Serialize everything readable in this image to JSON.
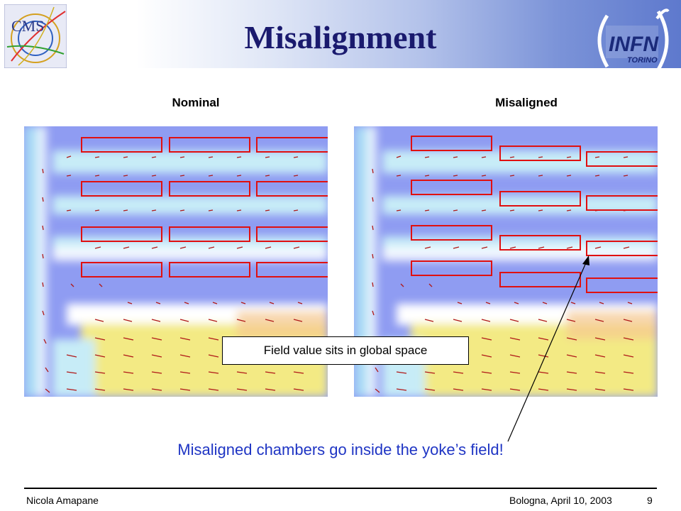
{
  "slide": {
    "title": "Misalignment",
    "panels": {
      "nominal_label": "Nominal",
      "misaligned_label": "Misaligned"
    },
    "callout": "Field value sits in global space",
    "conclusion": "Misaligned chambers go inside the yoke’s field!",
    "footer": {
      "author": "Nicola Amapane",
      "location_date": "Bologna, April 10, 2003",
      "page": "9"
    },
    "logos": {
      "cms_text": "CMS",
      "infn_text": "INFN",
      "infn_sub": "TORINO"
    },
    "colors": {
      "title": "#1a1a6e",
      "conclusion": "#1f35c4",
      "chamber_outline": "#e01010",
      "iron_region": "#f3ea84",
      "air_region": "#c7ecf7",
      "bg_field": "#8f9cf2"
    }
  }
}
